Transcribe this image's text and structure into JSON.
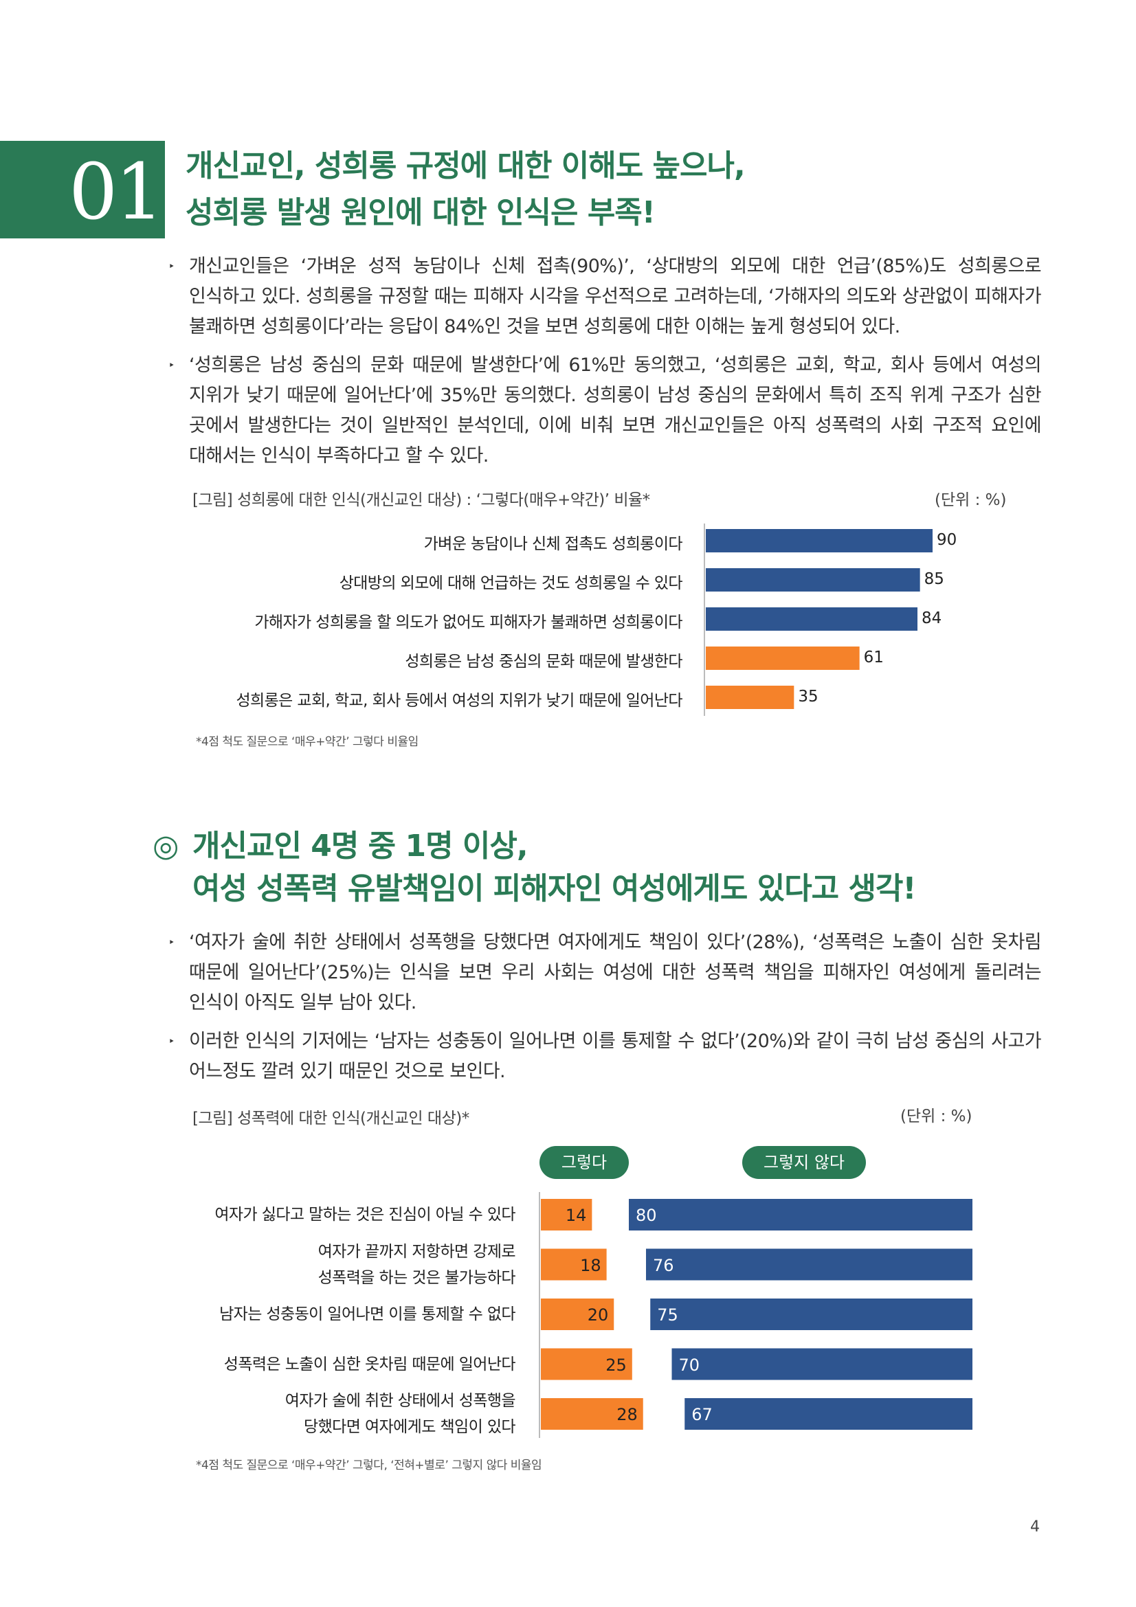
{
  "section1": {
    "number": "01",
    "title_line1": "개신교인, 성희롱 규정에 대한 이해도 높으나,",
    "title_line2": "성희롱 발생 원인에 대한 인식은 부족!",
    "bullets": [
      "개신교인들은 ‘가벼운 성적 농담이나 신체 접촉(90%)’, ‘상대방의 외모에 대한 언급’(85%)도 성희롱으로 인식하고 있다. 성희롱을 규정할 때는 피해자 시각을 우선적으로 고려하는데, ‘가해자의 의도와 상관없이 피해자가 불쾌하면 성희롱이다’라는 응답이 84%인 것을 보면 성희롱에 대한 이해는 높게 형성되어 있다.",
      "‘성희롱은 남성 중심의 문화 때문에 발생한다’에 61%만 동의했고, ‘성희롱은 교회, 학교, 회사 등에서 여성의 지위가 낮기 때문에 일어난다’에 35%만 동의했다. 성희롱이 남성 중심의 문화에서 특히 조직 위계 구조가 심한 곳에서 발생한다는 것이 일반적인 분석인데, 이에 비춰 보면 개신교인들은 아직 성폭력의 사회 구조적 요인에 대해서는 인식이 부족하다고 할 수 있다."
    ],
    "bullet_marker": "‣"
  },
  "figure1": {
    "caption": "[그림] 성희롱에 대한 인식(개신교인 대상) : ‘그렇다(매우+약간)’ 비율*",
    "unit": "(단위 : %)",
    "footnote": "*4점 척도 질문으로 ‘매우+약간’ 그렇다 비율임"
  },
  "section2": {
    "marker": "◎",
    "title_line1": "개신교인 4명 중 1명 이상,",
    "title_line2": "여성 성폭력 유발책임이 피해자인 여성에게도 있다고 생각!",
    "bullets": [
      "‘여자가 술에 취한 상태에서 성폭행을 당했다면 여자에게도 책임이 있다’(28%), ‘성폭력은 노출이 심한 옷차림 때문에 일어난다’(25%)는 인식을 보면 우리 사회는 여성에 대한 성폭력 책임을 피해자인 여성에게 돌리려는 인식이 아직도 일부 남아 있다.",
      "이러한 인식의 기저에는 ‘남자는 성충동이 일어나면 이를 통제할 수 없다’(20%)와 같이 극히 남성 중심의 사고가 어느정도 깔려 있기 때문인 것으로 보인다."
    ],
    "bullet_marker": "‣"
  },
  "figure2": {
    "caption": "[그림] 성폭력에 대한 인식(개신교인 대상)*",
    "unit": "(단위 : %)",
    "footnote": "*4점 척도 질문으로 ‘매우+약간’ 그렇다, ‘전혀+별로’ 그렇지 않다 비율임",
    "legend_agree": "그렇다",
    "legend_disagree": "그렇지 않다"
  },
  "page_number": "4",
  "chart_data": [
    {
      "type": "bar",
      "orientation": "horizontal",
      "categories": [
        "가벼운 농담이나 신체 접촉도 성희롱이다",
        "상대방의 외모에 대해 언급하는 것도 성희롱일 수 있다",
        "가해자가 성희롱을 할 의도가 없어도 피해자가 불쾌하면 성희롱이다",
        "성희롱은 남성 중심의 문화 때문에 발생한다",
        "성희롱은 교회, 학교, 회사 등에서 여성의 지위가 낮기 때문에 일어난다"
      ],
      "values": [
        90,
        85,
        84,
        61,
        35
      ],
      "bar_colors": [
        "#2e5590",
        "#2e5590",
        "#2e5590",
        "#f5822a",
        "#f5822a"
      ],
      "title": "[그림] 성희롱에 대한 인식(개신교인 대상) : ‘그렇다(매우+약간)’ 비율*",
      "xlim": [
        0,
        100
      ],
      "grid": false
    },
    {
      "type": "bar",
      "orientation": "horizontal-diverging",
      "categories": [
        "여자가 싫다고 말하는 것은 진심이 아닐 수 있다",
        "여자가 끝까지 저항하면 강제로 성폭력을 하는 것은 불가능하다",
        "남자는 성충동이 일어나면 이를 통제할 수 없다",
        "성폭력은 노출이 심한 옷차림 때문에 일어난다",
        "여자가 술에 취한 상태에서 성폭행을 당했다면 여자에게도 책임이 있다"
      ],
      "category_lines": [
        [
          "여자가 싫다고 말하는 것은 진심이 아닐 수 있다"
        ],
        [
          "여자가 끝까지 저항하면 강제로",
          "성폭력을 하는 것은 불가능하다"
        ],
        [
          "남자는 성충동이 일어나면 이를 통제할 수 없다"
        ],
        [
          "성폭력은 노출이 심한 옷차림 때문에 일어난다"
        ],
        [
          "여자가 술에 취한 상태에서 성폭행을",
          "당했다면 여자에게도 책임이 있다"
        ]
      ],
      "series": [
        {
          "name": "그렇다",
          "values": [
            14,
            18,
            20,
            25,
            28
          ],
          "color": "#f5822a"
        },
        {
          "name": "그렇지 않다",
          "values": [
            80,
            76,
            75,
            70,
            67
          ],
          "color": "#2e5590"
        }
      ],
      "title": "[그림] 성폭력에 대한 인식(개신교인 대상)*",
      "legend": "top",
      "grid": false
    }
  ]
}
